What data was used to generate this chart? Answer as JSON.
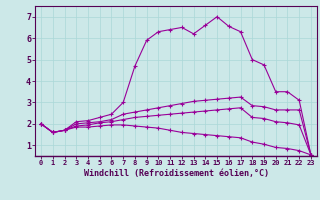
{
  "xlabel": "Windchill (Refroidissement éolien,°C)",
  "background_color": "#cce8e8",
  "line_color": "#990099",
  "xlim": [
    -0.5,
    23.5
  ],
  "ylim": [
    0.5,
    7.5
  ],
  "xticks": [
    0,
    1,
    2,
    3,
    4,
    5,
    6,
    7,
    8,
    9,
    10,
    11,
    12,
    13,
    14,
    15,
    16,
    17,
    18,
    19,
    20,
    21,
    22,
    23
  ],
  "yticks": [
    1,
    2,
    3,
    4,
    5,
    6,
    7
  ],
  "grid_color": "#aad8d8",
  "series": {
    "upper": [
      2.0,
      1.6,
      1.7,
      2.1,
      2.15,
      2.3,
      2.45,
      3.0,
      4.7,
      5.9,
      6.3,
      6.4,
      6.5,
      6.2,
      6.6,
      7.0,
      6.55,
      6.3,
      5.0,
      4.75,
      3.5,
      3.5,
      3.1,
      0.55
    ],
    "mid_upper": [
      2.0,
      1.6,
      1.7,
      2.0,
      2.05,
      2.1,
      2.2,
      2.45,
      2.55,
      2.65,
      2.75,
      2.85,
      2.95,
      3.05,
      3.1,
      3.15,
      3.2,
      3.25,
      2.85,
      2.8,
      2.65,
      2.65,
      2.65,
      0.55
    ],
    "mid_lower": [
      2.0,
      1.6,
      1.7,
      1.9,
      1.95,
      2.05,
      2.1,
      2.2,
      2.3,
      2.35,
      2.4,
      2.45,
      2.5,
      2.55,
      2.6,
      2.65,
      2.7,
      2.75,
      2.3,
      2.25,
      2.1,
      2.05,
      1.95,
      0.55
    ],
    "lower": [
      2.0,
      1.6,
      1.7,
      1.85,
      1.85,
      1.9,
      1.95,
      1.95,
      1.9,
      1.85,
      1.8,
      1.7,
      1.6,
      1.55,
      1.5,
      1.45,
      1.4,
      1.35,
      1.15,
      1.05,
      0.9,
      0.85,
      0.75,
      0.55
    ]
  }
}
